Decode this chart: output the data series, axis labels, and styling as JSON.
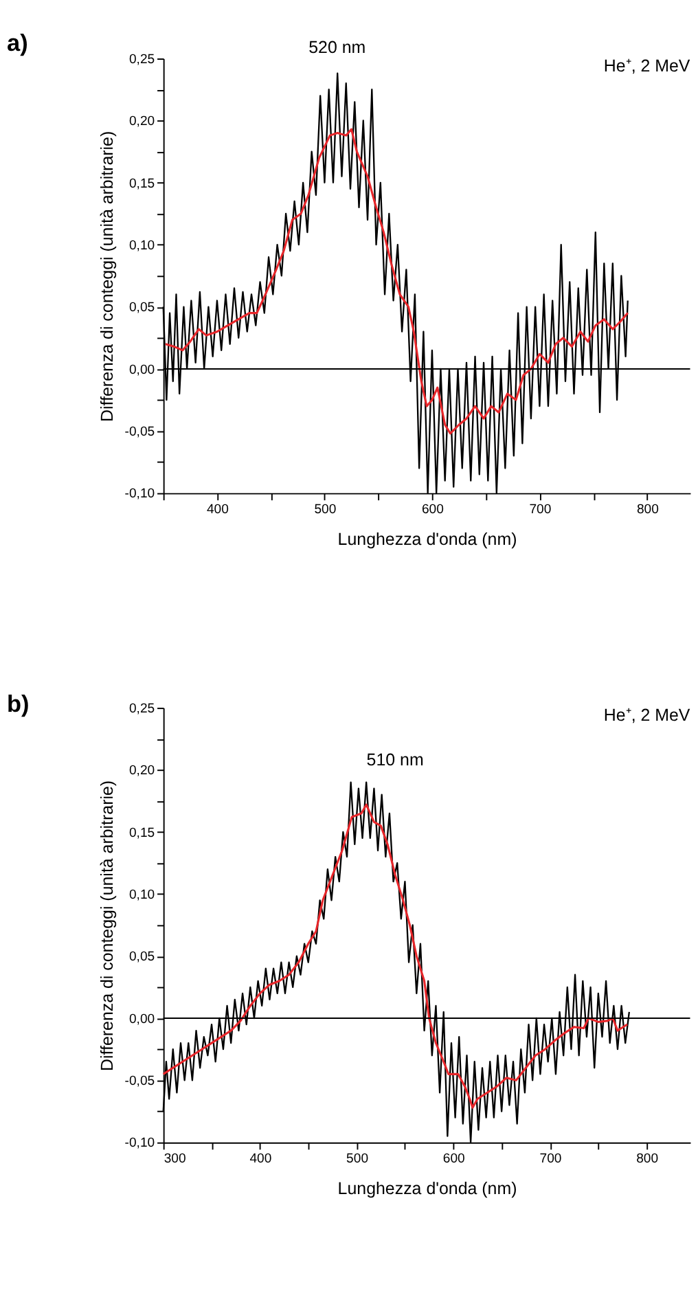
{
  "chart_data": [
    {
      "type": "line",
      "title": "a)",
      "xlabel": "Lunghezza d'onda (nm)",
      "ylabel": "Differenza di conteggi (unità arbitrarie)",
      "xlim": [
        350,
        840
      ],
      "xticks": [
        {
          "value": 350,
          "label": null
        },
        400,
        {
          "value": 450,
          "label": null
        },
        500,
        {
          "value": 550,
          "label": null
        },
        600,
        {
          "value": 650,
          "label": null
        },
        700,
        {
          "value": 750,
          "label": null
        },
        800
      ],
      "ylim": [
        -0.1,
        0.25
      ],
      "yticks": [
        {
          "value": -0.1,
          "label": "-0,10"
        },
        {
          "value": -0.075,
          "label": null
        },
        {
          "value": -0.05,
          "label": "-0,05"
        },
        {
          "value": -0.025,
          "label": null
        },
        {
          "value": 0,
          "label": "0,00"
        },
        {
          "value": 0.025,
          "label": null
        },
        {
          "value": 0.05,
          "label": "0,05"
        },
        {
          "value": 0.075,
          "label": null
        },
        {
          "value": 0.1,
          "label": "0,10"
        },
        {
          "value": 0.125,
          "label": null
        },
        {
          "value": 0.15,
          "label": "0,15"
        },
        {
          "value": 0.175,
          "label": null
        },
        {
          "value": 0.2,
          "label": "0,20"
        },
        {
          "value": 0.225,
          "label": null
        },
        {
          "value": 0.25,
          "label": "0,25"
        }
      ],
      "ref_lines": [
        {
          "axis": "y",
          "value": 0,
          "color": "#000000"
        }
      ],
      "annotations": [
        "He⁺, 2 MeV",
        "520 nm"
      ],
      "series": [
        {
          "color": "#000000",
          "x": [
            350,
            353,
            356,
            359,
            362,
            365,
            369,
            372,
            376,
            380,
            384,
            388,
            392,
            396,
            400,
            404,
            408,
            412,
            416,
            420,
            424,
            428,
            432,
            436,
            440,
            444,
            448,
            452,
            456,
            460,
            464,
            468,
            472,
            476,
            480,
            484,
            488,
            492,
            496,
            500,
            504,
            508,
            512,
            516,
            520,
            524,
            528,
            532,
            536,
            540,
            544,
            548,
            552,
            556,
            560,
            564,
            568,
            572,
            576,
            580,
            584,
            588,
            592,
            596,
            600,
            604,
            608,
            612,
            616,
            620,
            624,
            628,
            632,
            636,
            640,
            644,
            648,
            652,
            656,
            660,
            664,
            668,
            672,
            676,
            680,
            684,
            688,
            692,
            696,
            700,
            704,
            708,
            712,
            716,
            720,
            724,
            728,
            732,
            736,
            740,
            744,
            748,
            752,
            756,
            760,
            764,
            768,
            772,
            776,
            780,
            782
          ],
          "values": [
            0.05,
            -0.025,
            0.045,
            -0.01,
            0.06,
            -0.02,
            0.05,
            0.0,
            0.055,
            0.005,
            0.062,
            0.0,
            0.05,
            0.01,
            0.055,
            0.015,
            0.06,
            0.02,
            0.065,
            0.025,
            0.062,
            0.03,
            0.06,
            0.035,
            0.07,
            0.045,
            0.09,
            0.06,
            0.1,
            0.075,
            0.125,
            0.095,
            0.135,
            0.1,
            0.15,
            0.11,
            0.175,
            0.14,
            0.22,
            0.15,
            0.225,
            0.15,
            0.238,
            0.155,
            0.23,
            0.145,
            0.215,
            0.13,
            0.2,
            0.12,
            0.225,
            0.1,
            0.15,
            0.06,
            0.125,
            0.055,
            0.1,
            0.03,
            0.08,
            -0.01,
            0.06,
            -0.08,
            0.03,
            -0.1,
            0.015,
            -0.1,
            0.0,
            -0.09,
            0.0,
            -0.095,
            0.0,
            -0.08,
            0.005,
            -0.09,
            0.01,
            -0.085,
            0.005,
            -0.09,
            0.01,
            -0.1,
            0.0,
            -0.08,
            0.015,
            -0.07,
            0.045,
            -0.06,
            0.05,
            -0.04,
            0.05,
            -0.03,
            0.06,
            -0.03,
            0.055,
            -0.02,
            0.1,
            -0.01,
            0.07,
            -0.02,
            0.065,
            -0.005,
            0.08,
            -0.005,
            0.11,
            -0.035,
            0.085,
            0.0,
            0.085,
            -0.025,
            0.075,
            0.01,
            0.055
          ]
        },
        {
          "color": "#e8262a",
          "x": [
            352,
            360,
            368,
            375,
            383,
            390,
            400,
            410,
            420,
            430,
            437,
            445,
            455,
            462,
            470,
            478,
            485,
            495,
            505,
            512,
            520,
            525,
            530,
            540,
            548,
            555,
            562,
            570,
            578,
            583,
            590,
            595,
            600,
            605,
            612,
            617,
            625,
            632,
            640,
            648,
            655,
            662,
            670,
            678,
            685,
            692,
            700,
            708,
            715,
            722,
            730,
            738,
            745,
            752,
            760,
            768,
            775,
            782
          ],
          "values": [
            0.02,
            0.018,
            0.015,
            0.022,
            0.032,
            0.027,
            0.03,
            0.035,
            0.04,
            0.045,
            0.045,
            0.06,
            0.08,
            0.095,
            0.12,
            0.125,
            0.14,
            0.17,
            0.188,
            0.19,
            0.188,
            0.193,
            0.175,
            0.155,
            0.13,
            0.11,
            0.085,
            0.06,
            0.05,
            0.03,
            -0.01,
            -0.03,
            -0.025,
            -0.015,
            -0.045,
            -0.052,
            -0.045,
            -0.04,
            -0.03,
            -0.04,
            -0.03,
            -0.035,
            -0.02,
            -0.025,
            -0.005,
            0.0,
            0.012,
            0.005,
            0.02,
            0.025,
            0.018,
            0.03,
            0.022,
            0.035,
            0.04,
            0.032,
            0.038,
            0.045
          ]
        }
      ]
    },
    {
      "type": "line",
      "title": "b)",
      "xlabel": "Lunghezza d'onda (nm)",
      "ylabel": "Differenza di conteggi (unità arbitrarie)",
      "xlim": [
        300,
        845
      ],
      "xticks": [
        300,
        {
          "value": 350,
          "label": null
        },
        400,
        {
          "value": 450,
          "label": null
        },
        500,
        {
          "value": 550,
          "label": null
        },
        600,
        {
          "value": 650,
          "label": null
        },
        700,
        {
          "value": 750,
          "label": null
        },
        800
      ],
      "ylim": [
        -0.1,
        0.25
      ],
      "yticks": [
        {
          "value": -0.1,
          "label": "-0,10"
        },
        {
          "value": -0.075,
          "label": null
        },
        {
          "value": -0.05,
          "label": "-0,05"
        },
        {
          "value": -0.025,
          "label": null
        },
        {
          "value": 0,
          "label": "0,00"
        },
        {
          "value": 0.025,
          "label": null
        },
        {
          "value": 0.05,
          "label": "0,05"
        },
        {
          "value": 0.075,
          "label": null
        },
        {
          "value": 0.1,
          "label": "0,10"
        },
        {
          "value": 0.125,
          "label": null
        },
        {
          "value": 0.15,
          "label": "0,15"
        },
        {
          "value": 0.175,
          "label": null
        },
        {
          "value": 0.2,
          "label": "0,20"
        },
        {
          "value": 0.225,
          "label": null
        },
        {
          "value": 0.25,
          "label": "0,25"
        }
      ],
      "ref_lines": [
        {
          "axis": "y",
          "value": 0,
          "color": "#000000"
        }
      ],
      "annotations": [
        "He⁺, 2 MeV",
        "510 nm"
      ],
      "series": [
        {
          "color": "#000000",
          "x": [
            300,
            303,
            306,
            310,
            314,
            318,
            322,
            326,
            330,
            334,
            338,
            342,
            346,
            350,
            354,
            358,
            362,
            366,
            370,
            374,
            378,
            382,
            386,
            390,
            394,
            398,
            402,
            406,
            410,
            414,
            418,
            422,
            426,
            430,
            434,
            438,
            442,
            446,
            450,
            454,
            458,
            462,
            466,
            470,
            474,
            478,
            482,
            486,
            490,
            494,
            498,
            502,
            506,
            510,
            514,
            518,
            522,
            526,
            530,
            534,
            538,
            542,
            546,
            550,
            554,
            558,
            562,
            566,
            570,
            574,
            578,
            582,
            586,
            590,
            594,
            598,
            602,
            606,
            610,
            614,
            618,
            622,
            626,
            630,
            634,
            638,
            642,
            646,
            650,
            654,
            658,
            662,
            666,
            670,
            674,
            678,
            682,
            686,
            690,
            694,
            698,
            702,
            706,
            710,
            714,
            718,
            722,
            726,
            730,
            734,
            738,
            742,
            746,
            750,
            754,
            758,
            762,
            766,
            770,
            774,
            778,
            782
          ],
          "values": [
            -0.075,
            -0.035,
            -0.065,
            -0.025,
            -0.06,
            -0.02,
            -0.05,
            -0.02,
            -0.05,
            -0.01,
            -0.04,
            -0.015,
            -0.03,
            -0.005,
            -0.035,
            0.0,
            -0.025,
            0.01,
            -0.02,
            0.015,
            -0.01,
            0.02,
            -0.005,
            0.025,
            0.0,
            0.03,
            0.01,
            0.04,
            0.015,
            0.04,
            0.02,
            0.045,
            0.02,
            0.045,
            0.025,
            0.05,
            0.035,
            0.06,
            0.045,
            0.07,
            0.06,
            0.095,
            0.08,
            0.12,
            0.095,
            0.13,
            0.11,
            0.15,
            0.13,
            0.19,
            0.14,
            0.185,
            0.145,
            0.19,
            0.145,
            0.185,
            0.135,
            0.18,
            0.13,
            0.165,
            0.11,
            0.125,
            0.08,
            0.11,
            0.045,
            0.075,
            0.02,
            0.06,
            -0.01,
            0.03,
            -0.03,
            0.01,
            -0.06,
            0.005,
            -0.095,
            -0.02,
            -0.08,
            -0.015,
            -0.085,
            -0.03,
            -0.1,
            -0.035,
            -0.09,
            -0.04,
            -0.08,
            -0.035,
            -0.08,
            -0.03,
            -0.075,
            -0.03,
            -0.07,
            -0.035,
            -0.085,
            -0.025,
            -0.06,
            -0.005,
            -0.05,
            0.0,
            -0.045,
            -0.005,
            -0.035,
            0.0,
            -0.045,
            0.005,
            -0.03,
            0.025,
            -0.025,
            0.035,
            -0.03,
            0.03,
            -0.015,
            0.025,
            -0.04,
            0.02,
            -0.015,
            0.03,
            -0.02,
            0.01,
            -0.025,
            0.01,
            -0.02,
            0.005
          ]
        },
        {
          "color": "#e8262a",
          "x": [
            300,
            310,
            320,
            330,
            340,
            350,
            360,
            370,
            380,
            390,
            400,
            410,
            420,
            430,
            440,
            450,
            458,
            465,
            475,
            485,
            495,
            505,
            510,
            518,
            525,
            532,
            540,
            548,
            555,
            562,
            570,
            575,
            582,
            590,
            595,
            605,
            612,
            617,
            620,
            625,
            635,
            645,
            655,
            665,
            675,
            685,
            695,
            705,
            715,
            725,
            735,
            740,
            750,
            760,
            765,
            770,
            780
          ],
          "values": [
            -0.045,
            -0.04,
            -0.035,
            -0.03,
            -0.025,
            -0.02,
            -0.015,
            -0.01,
            -0.002,
            0.01,
            0.02,
            0.027,
            0.03,
            0.035,
            0.045,
            0.06,
            0.07,
            0.095,
            0.115,
            0.135,
            0.162,
            0.165,
            0.172,
            0.158,
            0.155,
            0.14,
            0.115,
            0.095,
            0.075,
            0.05,
            0.03,
            0.0,
            -0.02,
            -0.035,
            -0.045,
            -0.045,
            -0.055,
            -0.065,
            -0.072,
            -0.065,
            -0.06,
            -0.055,
            -0.048,
            -0.05,
            -0.04,
            -0.03,
            -0.025,
            -0.018,
            -0.012,
            -0.007,
            -0.008,
            0.0,
            -0.003,
            -0.002,
            0.0,
            -0.01,
            -0.005
          ]
        }
      ]
    }
  ]
}
